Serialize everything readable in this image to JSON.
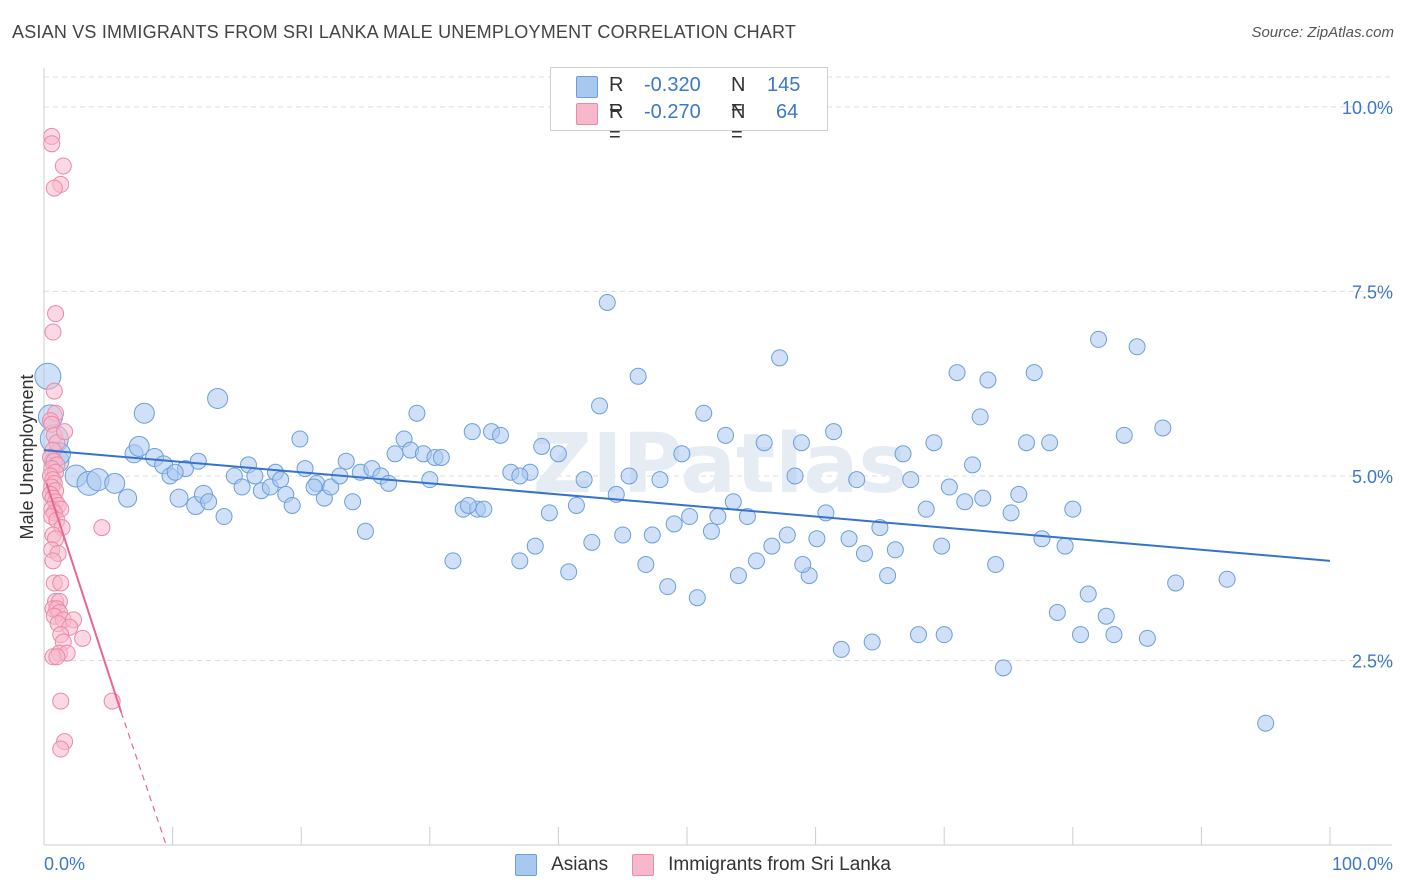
{
  "title": "ASIAN VS IMMIGRANTS FROM SRI LANKA MALE UNEMPLOYMENT CORRELATION CHART",
  "source": "Source: ZipAtlas.com",
  "watermark": "ZIPatlas",
  "colors": {
    "blue_fill": "#a9c8f0",
    "blue_stroke": "#6b9fdc",
    "blue_line": "#3673cc",
    "pink_fill": "#f7b8cc",
    "pink_stroke": "#ea8aa8",
    "pink_line": "#e8668f",
    "grid": "#dddddd",
    "axis_text": "#3b78c8"
  },
  "stats": {
    "rows": [
      {
        "series": "Asians",
        "r_label": "R =",
        "r_value": "-0.320",
        "n_label": "N =",
        "n_value": "145"
      },
      {
        "series": "Immigrants from Sri Lanka",
        "r_label": "R =",
        "r_value": "-0.270",
        "n_label": "N =",
        "n_value": "64"
      }
    ]
  },
  "legend": {
    "asians": "Asians",
    "sri_lanka": "Immigrants from Sri Lanka"
  },
  "chart_data": {
    "type": "scatter",
    "title": "ASIAN VS IMMIGRANTS FROM SRI LANKA MALE UNEMPLOYMENT CORRELATION CHART",
    "xlabel": "",
    "ylabel": "Male Unemployment",
    "xlim": [
      0,
      100
    ],
    "ylim": [
      0,
      10.5
    ],
    "x_tick_labels": [
      "0.0%",
      "100.0%"
    ],
    "y_ticks": [
      2.5,
      5.0,
      7.5,
      10.0
    ],
    "y_tick_labels": [
      "2.5%",
      "5.0%",
      "7.5%",
      "10.0%"
    ],
    "grid": true,
    "legend_position": "bottom-center",
    "series": [
      {
        "name": "Asians",
        "color": "#a9c8f0",
        "trend": {
          "x": [
            0,
            100
          ],
          "y": [
            5.35,
            3.85
          ],
          "dashed_after": null
        },
        "points": [
          [
            0.3,
            6.35,
            13
          ],
          [
            0.5,
            5.8,
            12
          ],
          [
            0.8,
            5.5,
            14
          ],
          [
            1.0,
            5.2,
            12
          ],
          [
            1.2,
            5.3,
            11
          ],
          [
            2.5,
            5.0,
            11
          ],
          [
            3.5,
            4.9,
            12
          ],
          [
            4.2,
            4.95,
            11
          ],
          [
            5.5,
            4.9,
            10
          ],
          [
            6.5,
            4.7,
            9
          ],
          [
            7.0,
            5.3,
            9
          ],
          [
            7.4,
            5.4,
            10
          ],
          [
            7.8,
            5.85,
            10
          ],
          [
            8.6,
            5.25,
            9
          ],
          [
            9.3,
            5.15,
            9
          ],
          [
            10.5,
            4.7,
            9
          ],
          [
            11.0,
            5.1,
            8
          ],
          [
            9.8,
            5.0,
            8
          ],
          [
            10.2,
            5.05,
            8
          ],
          [
            11.8,
            4.6,
            9
          ],
          [
            12.4,
            4.75,
            9
          ],
          [
            12.8,
            4.65,
            8
          ],
          [
            13.5,
            6.05,
            10
          ],
          [
            14.0,
            4.45,
            8
          ],
          [
            14.8,
            5.0,
            8
          ],
          [
            15.4,
            4.85,
            8
          ],
          [
            15.9,
            5.15,
            8
          ],
          [
            16.4,
            5.0,
            8
          ],
          [
            16.9,
            4.8,
            8
          ],
          [
            17.6,
            4.85,
            8
          ],
          [
            18.0,
            5.05,
            8
          ],
          [
            18.4,
            4.95,
            8
          ],
          [
            18.8,
            4.75,
            8
          ],
          [
            19.3,
            4.6,
            8
          ],
          [
            19.9,
            5.5,
            8
          ],
          [
            20.3,
            5.1,
            8
          ],
          [
            21.2,
            4.9,
            8
          ],
          [
            21.8,
            4.7,
            8
          ],
          [
            22.3,
            4.85,
            8
          ],
          [
            23.0,
            5.0,
            8
          ],
          [
            23.5,
            5.2,
            8
          ],
          [
            24.0,
            4.65,
            8
          ],
          [
            24.6,
            5.05,
            8
          ],
          [
            25.0,
            4.25,
            8
          ],
          [
            25.5,
            5.1,
            8
          ],
          [
            26.2,
            5.0,
            8
          ],
          [
            26.8,
            4.9,
            8
          ],
          [
            27.3,
            5.3,
            8
          ],
          [
            28.0,
            5.5,
            8
          ],
          [
            28.5,
            5.35,
            8
          ],
          [
            29.0,
            5.85,
            8
          ],
          [
            29.5,
            5.3,
            8
          ],
          [
            30.0,
            4.95,
            8
          ],
          [
            30.4,
            5.25,
            8
          ],
          [
            30.9,
            5.25,
            8
          ],
          [
            31.8,
            3.85,
            8
          ],
          [
            32.6,
            4.55,
            8
          ],
          [
            33.3,
            5.6,
            8
          ],
          [
            33.7,
            4.55,
            8
          ],
          [
            34.2,
            4.55,
            8
          ],
          [
            34.8,
            5.6,
            8
          ],
          [
            35.5,
            5.55,
            8
          ],
          [
            36.3,
            5.05,
            8
          ],
          [
            37.0,
            3.85,
            8
          ],
          [
            37.8,
            5.05,
            8
          ],
          [
            38.2,
            4.05,
            8
          ],
          [
            38.7,
            5.4,
            8
          ],
          [
            39.3,
            4.5,
            8
          ],
          [
            40.0,
            5.3,
            8
          ],
          [
            40.8,
            3.7,
            8
          ],
          [
            41.4,
            4.6,
            8
          ],
          [
            42.0,
            4.95,
            8
          ],
          [
            42.6,
            4.1,
            8
          ],
          [
            43.2,
            5.95,
            8
          ],
          [
            43.8,
            7.35,
            8
          ],
          [
            44.5,
            4.75,
            8
          ],
          [
            45.0,
            4.2,
            8
          ],
          [
            45.5,
            5.0,
            8
          ],
          [
            46.2,
            6.35,
            8
          ],
          [
            46.8,
            3.8,
            8
          ],
          [
            47.3,
            4.2,
            8
          ],
          [
            47.9,
            4.95,
            8
          ],
          [
            48.5,
            3.5,
            8
          ],
          [
            49.0,
            4.35,
            8
          ],
          [
            49.6,
            5.3,
            8
          ],
          [
            50.2,
            4.45,
            8
          ],
          [
            50.8,
            3.35,
            8
          ],
          [
            51.3,
            5.85,
            8
          ],
          [
            51.9,
            4.25,
            8
          ],
          [
            52.4,
            4.45,
            8
          ],
          [
            53.0,
            5.55,
            8
          ],
          [
            53.6,
            4.65,
            8
          ],
          [
            54.0,
            3.65,
            8
          ],
          [
            54.7,
            4.45,
            8
          ],
          [
            55.4,
            3.85,
            8
          ],
          [
            56.0,
            5.45,
            8
          ],
          [
            56.6,
            4.05,
            8
          ],
          [
            57.2,
            6.6,
            8
          ],
          [
            57.8,
            4.2,
            8
          ],
          [
            58.4,
            5.0,
            8
          ],
          [
            58.9,
            5.45,
            8
          ],
          [
            59.5,
            3.65,
            8
          ],
          [
            60.1,
            4.15,
            8
          ],
          [
            60.8,
            4.5,
            8
          ],
          [
            61.4,
            5.6,
            8
          ],
          [
            62.0,
            2.65,
            8
          ],
          [
            62.6,
            4.15,
            8
          ],
          [
            63.2,
            4.95,
            8
          ],
          [
            63.8,
            3.95,
            8
          ],
          [
            64.4,
            2.75,
            8
          ],
          [
            65.0,
            4.3,
            8
          ],
          [
            65.6,
            3.65,
            8
          ],
          [
            66.2,
            4.0,
            8
          ],
          [
            66.8,
            5.3,
            8
          ],
          [
            67.4,
            4.95,
            8
          ],
          [
            68.0,
            2.85,
            8
          ],
          [
            68.6,
            4.55,
            8
          ],
          [
            69.2,
            5.45,
            8
          ],
          [
            69.8,
            4.05,
            8
          ],
          [
            70.4,
            4.85,
            8
          ],
          [
            71.0,
            6.4,
            8
          ],
          [
            71.6,
            4.65,
            8
          ],
          [
            72.2,
            5.15,
            8
          ],
          [
            72.8,
            5.8,
            8
          ],
          [
            73.4,
            6.3,
            8
          ],
          [
            74.0,
            3.8,
            8
          ],
          [
            74.6,
            2.4,
            8
          ],
          [
            75.2,
            4.5,
            8
          ],
          [
            75.8,
            4.75,
            8
          ],
          [
            76.4,
            5.45,
            8
          ],
          [
            77.0,
            6.4,
            8
          ],
          [
            77.6,
            4.15,
            8
          ],
          [
            78.2,
            5.45,
            8
          ],
          [
            78.8,
            3.15,
            8
          ],
          [
            79.4,
            4.05,
            8
          ],
          [
            80.0,
            4.55,
            8
          ],
          [
            80.6,
            2.85,
            8
          ],
          [
            81.2,
            3.4,
            8
          ],
          [
            82.0,
            6.85,
            8
          ],
          [
            82.6,
            3.1,
            8
          ],
          [
            83.2,
            2.85,
            8
          ],
          [
            84.0,
            5.55,
            8
          ],
          [
            85.0,
            6.75,
            8
          ],
          [
            85.8,
            2.8,
            8
          ],
          [
            87.0,
            5.65,
            8
          ],
          [
            88.0,
            3.55,
            8
          ],
          [
            92.0,
            3.6,
            8
          ],
          [
            95.0,
            1.65,
            8
          ],
          [
            70.0,
            2.85,
            8
          ],
          [
            33.0,
            4.6,
            8
          ],
          [
            12.0,
            5.2,
            8
          ],
          [
            21.0,
            4.85,
            8
          ],
          [
            37.0,
            5.0,
            8
          ],
          [
            59.0,
            3.8,
            8
          ],
          [
            73.0,
            4.7,
            8
          ]
        ]
      },
      {
        "name": "Immigrants from Sri Lanka",
        "color": "#f7b8cc",
        "trend": {
          "x": [
            0.2,
            6.0
          ],
          "y": [
            4.9,
            1.8
          ],
          "dashed_to": [
            9.5,
            0.0
          ]
        },
        "points": [
          [
            0.6,
            9.6,
            8
          ],
          [
            0.6,
            9.5,
            8
          ],
          [
            1.5,
            9.2,
            8
          ],
          [
            1.3,
            8.95,
            8
          ],
          [
            0.8,
            8.9,
            8
          ],
          [
            0.9,
            7.2,
            8
          ],
          [
            0.7,
            6.95,
            8
          ],
          [
            0.8,
            6.15,
            8
          ],
          [
            0.9,
            5.85,
            8
          ],
          [
            0.5,
            5.75,
            8
          ],
          [
            0.6,
            5.7,
            8
          ],
          [
            0.8,
            5.55,
            8
          ],
          [
            1.0,
            5.45,
            8
          ],
          [
            0.7,
            5.35,
            8
          ],
          [
            0.5,
            5.25,
            8
          ],
          [
            0.8,
            5.2,
            8
          ],
          [
            1.0,
            5.15,
            8
          ],
          [
            0.6,
            5.1,
            8
          ],
          [
            0.9,
            5.05,
            8
          ],
          [
            0.5,
            5.0,
            8
          ],
          [
            0.7,
            4.95,
            8
          ],
          [
            0.8,
            4.9,
            8
          ],
          [
            0.6,
            4.85,
            8
          ],
          [
            0.9,
            4.8,
            8
          ],
          [
            0.5,
            4.75,
            8
          ],
          [
            0.7,
            4.7,
            8
          ],
          [
            0.9,
            4.65,
            8
          ],
          [
            1.1,
            4.6,
            8
          ],
          [
            0.6,
            4.55,
            8
          ],
          [
            1.3,
            4.55,
            8
          ],
          [
            0.8,
            4.5,
            8
          ],
          [
            0.6,
            4.45,
            8
          ],
          [
            1.0,
            4.4,
            8
          ],
          [
            1.4,
            4.3,
            8
          ],
          [
            0.7,
            4.2,
            8
          ],
          [
            0.9,
            4.15,
            8
          ],
          [
            0.6,
            4.0,
            8
          ],
          [
            1.1,
            3.95,
            8
          ],
          [
            0.7,
            3.85,
            8
          ],
          [
            0.8,
            3.55,
            8
          ],
          [
            1.3,
            3.55,
            8
          ],
          [
            0.9,
            3.3,
            8
          ],
          [
            1.2,
            3.3,
            8
          ],
          [
            0.7,
            3.2,
            8
          ],
          [
            1.0,
            3.2,
            8
          ],
          [
            1.2,
            3.15,
            8
          ],
          [
            0.8,
            3.1,
            8
          ],
          [
            1.5,
            3.05,
            8
          ],
          [
            1.1,
            3.0,
            8
          ],
          [
            2.3,
            3.05,
            8
          ],
          [
            2.0,
            2.95,
            8
          ],
          [
            1.3,
            2.85,
            8
          ],
          [
            1.5,
            2.75,
            8
          ],
          [
            3.0,
            2.8,
            8
          ],
          [
            1.2,
            2.6,
            8
          ],
          [
            1.8,
            2.6,
            8
          ],
          [
            0.7,
            2.55,
            8
          ],
          [
            1.0,
            2.55,
            8
          ],
          [
            1.3,
            1.95,
            8
          ],
          [
            5.3,
            1.95,
            8
          ],
          [
            1.6,
            1.4,
            8
          ],
          [
            1.3,
            1.3,
            8
          ],
          [
            4.5,
            4.3,
            8
          ],
          [
            1.6,
            5.6,
            8
          ]
        ]
      }
    ]
  }
}
